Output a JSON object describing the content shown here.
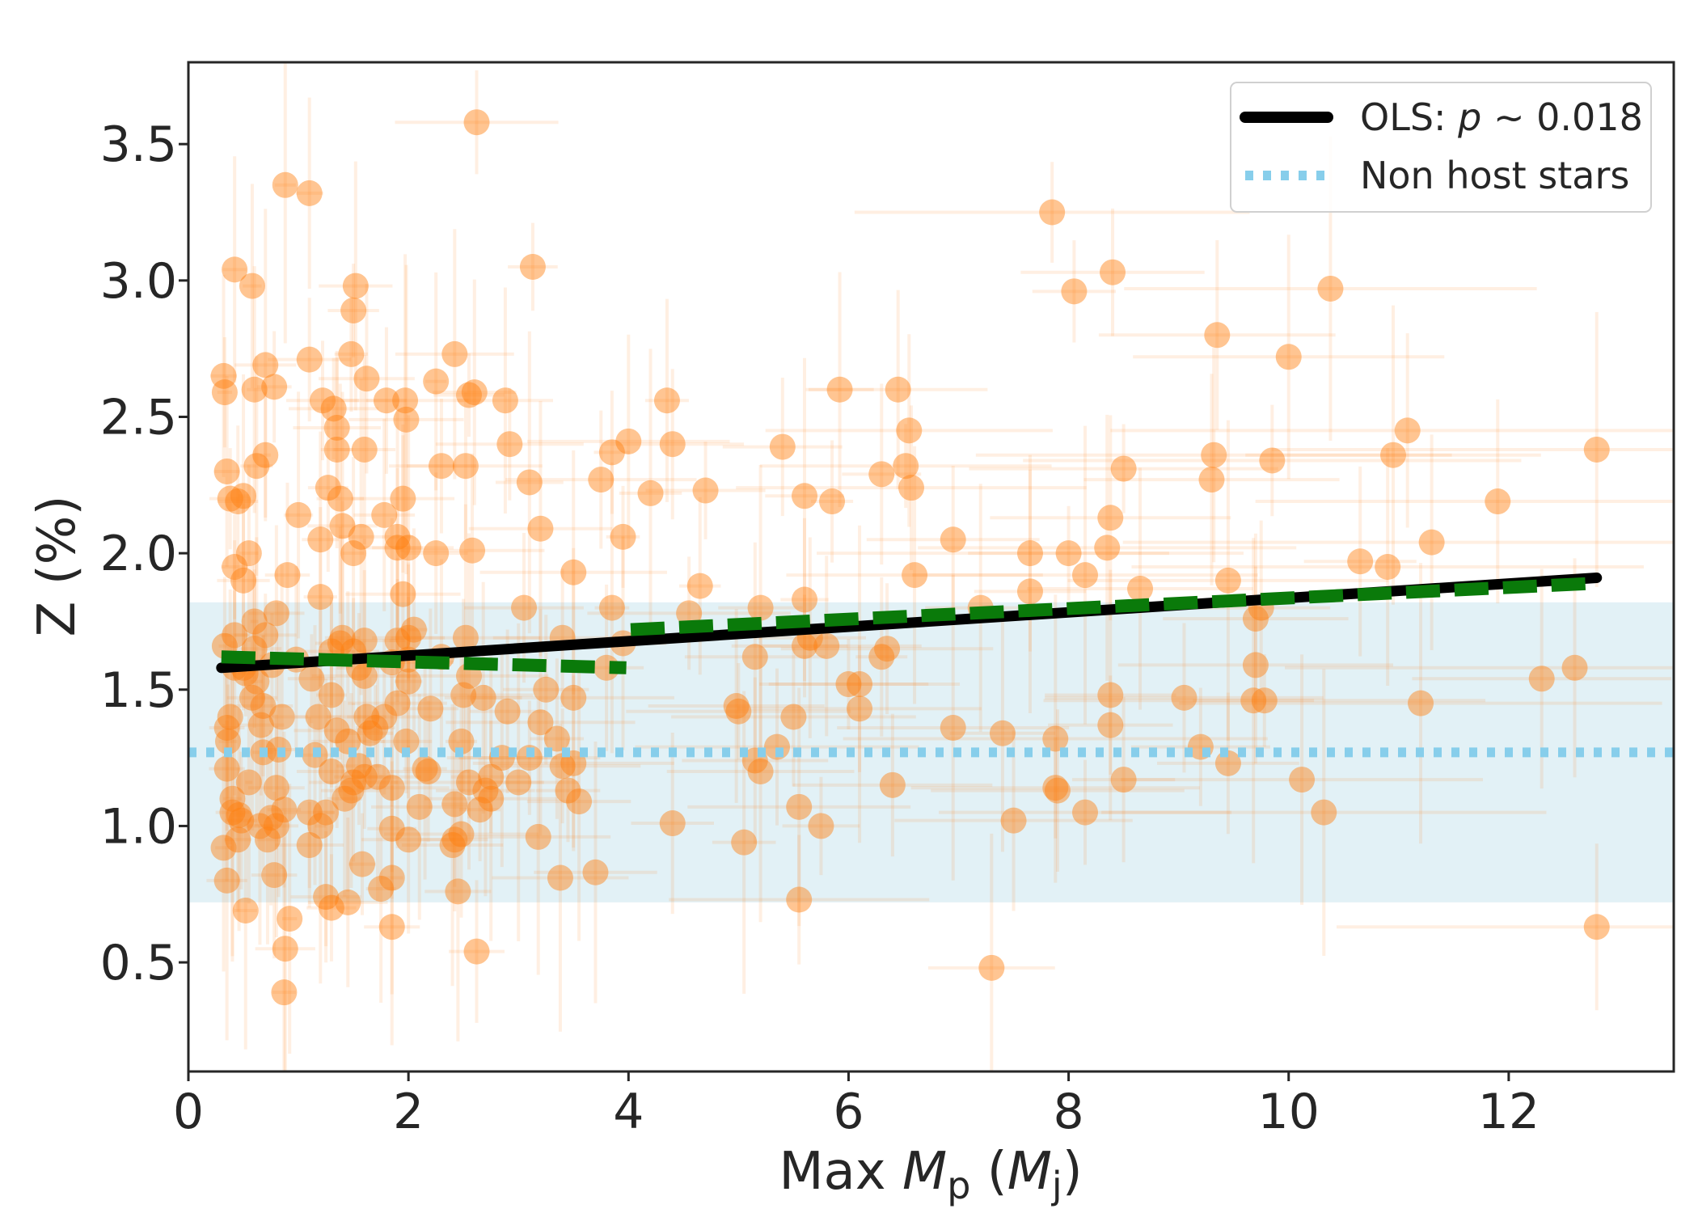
{
  "chart_data": {
    "type": "scatter",
    "title": "",
    "xlabel": {
      "prefix": "Max ",
      "var": "M",
      "var_sub": "p",
      "unit_open": " (",
      "unit_var": "M",
      "unit_sub": "j",
      "unit_close": ")"
    },
    "ylabel": "Z (%)",
    "xlim": [
      0,
      13.5
    ],
    "ylim": [
      0.1,
      3.8
    ],
    "xticks": [
      0,
      2,
      4,
      6,
      8,
      10,
      12
    ],
    "xtick_labels": [
      "0",
      "2",
      "4",
      "6",
      "8",
      "10",
      "12"
    ],
    "yticks": [
      0.5,
      1.0,
      1.5,
      2.0,
      2.5,
      3.0,
      3.5
    ],
    "ytick_labels": [
      "0.5",
      "1.0",
      "1.5",
      "2.0",
      "2.5",
      "3.0",
      "3.5"
    ],
    "grid": false,
    "legend_position": "top-right",
    "legend": {
      "ols_prefix": "OLS: ",
      "ols_var": "p",
      "ols_suffix": " ~ 0.018",
      "non_host": "Non host stars"
    },
    "colors": {
      "points": "#ff7f0e",
      "ols_line": "#000000",
      "piecewise": "#0a7a0a",
      "non_host_line": "#87ceeb",
      "non_host_band": "#add8e6"
    },
    "ols_fit": {
      "x": [
        0.3,
        12.8
      ],
      "y": [
        1.58,
        1.91
      ]
    },
    "piecewise_fit": [
      {
        "x": [
          0.3,
          3.98
        ],
        "y": [
          1.62,
          1.58
        ]
      },
      {
        "x": [
          4.02,
          12.8
        ],
        "y": [
          1.72,
          1.89
        ]
      }
    ],
    "non_host": {
      "mean": 1.27,
      "band": [
        0.72,
        1.82
      ],
      "x_extent": [
        0,
        13.5
      ]
    },
    "points": [
      [
        0.32,
        2.65
      ],
      [
        0.33,
        2.59
      ],
      [
        0.35,
        2.3
      ],
      [
        0.38,
        2.2
      ],
      [
        0.42,
        3.04
      ],
      [
        0.45,
        2.19
      ],
      [
        0.5,
        2.21
      ],
      [
        0.58,
        2.98
      ],
      [
        0.6,
        2.6
      ],
      [
        0.62,
        2.32
      ],
      [
        0.7,
        2.36
      ],
      [
        0.7,
        2.69
      ],
      [
        0.78,
        2.61
      ],
      [
        0.88,
        3.35
      ],
      [
        0.9,
        1.92
      ],
      [
        1.0,
        2.14
      ],
      [
        1.1,
        2.71
      ],
      [
        1.1,
        3.32
      ],
      [
        1.2,
        2.05
      ],
      [
        1.22,
        2.56
      ],
      [
        1.27,
        2.24
      ],
      [
        1.32,
        2.53
      ],
      [
        1.35,
        2.46
      ],
      [
        1.35,
        2.38
      ],
      [
        1.38,
        2.2
      ],
      [
        1.4,
        2.1
      ],
      [
        1.48,
        2.73
      ],
      [
        1.5,
        2.0
      ],
      [
        1.5,
        2.89
      ],
      [
        1.52,
        2.98
      ],
      [
        1.57,
        2.06
      ],
      [
        1.6,
        2.38
      ],
      [
        1.62,
        2.64
      ],
      [
        1.78,
        2.14
      ],
      [
        1.8,
        2.56
      ],
      [
        1.9,
        2.06
      ],
      [
        1.95,
        2.2
      ],
      [
        1.97,
        2.56
      ],
      [
        1.98,
        2.49
      ],
      [
        2.0,
        2.02
      ],
      [
        2.25,
        2.63
      ],
      [
        2.25,
        2.0
      ],
      [
        2.3,
        2.32
      ],
      [
        2.42,
        2.73
      ],
      [
        2.52,
        2.32
      ],
      [
        2.55,
        2.58
      ],
      [
        2.6,
        2.59
      ],
      [
        2.62,
        3.58
      ],
      [
        2.58,
        2.01
      ],
      [
        2.88,
        2.56
      ],
      [
        2.92,
        2.4
      ],
      [
        3.1,
        2.26
      ],
      [
        3.13,
        3.05
      ],
      [
        3.2,
        2.09
      ],
      [
        3.5,
        1.93
      ],
      [
        3.75,
        2.27
      ],
      [
        3.85,
        2.37
      ],
      [
        3.95,
        2.06
      ],
      [
        4.0,
        2.41
      ],
      [
        4.2,
        2.22
      ],
      [
        4.35,
        2.56
      ],
      [
        4.4,
        2.4
      ],
      [
        4.7,
        2.23
      ],
      [
        5.4,
        2.39
      ],
      [
        5.6,
        2.21
      ],
      [
        5.85,
        2.19
      ],
      [
        5.92,
        2.6
      ],
      [
        6.3,
        2.29
      ],
      [
        6.45,
        2.6
      ],
      [
        6.52,
        2.32
      ],
      [
        6.55,
        2.45
      ],
      [
        6.57,
        2.24
      ],
      [
        6.6,
        1.92
      ],
      [
        6.95,
        2.05
      ],
      [
        7.85,
        3.25
      ],
      [
        8.05,
        2.96
      ],
      [
        8.4,
        3.03
      ],
      [
        8.5,
        2.31
      ],
      [
        9.35,
        2.8
      ],
      [
        9.32,
        2.36
      ],
      [
        9.3,
        2.27
      ],
      [
        9.85,
        2.34
      ],
      [
        10.0,
        2.72
      ],
      [
        10.38,
        2.97
      ],
      [
        11.08,
        2.45
      ],
      [
        10.95,
        2.36
      ],
      [
        11.9,
        2.19
      ],
      [
        12.8,
        2.38
      ],
      [
        11.3,
        2.04
      ],
      [
        10.9,
        1.95
      ],
      [
        10.65,
        1.97
      ],
      [
        9.45,
        1.9
      ],
      [
        8.65,
        1.87
      ],
      [
        8.35,
        2.02
      ],
      [
        8.38,
        2.13
      ],
      [
        8.15,
        1.92
      ],
      [
        8.0,
        2.0
      ],
      [
        7.65,
        2.0
      ],
      [
        7.65,
        1.86
      ],
      [
        7.2,
        1.8
      ],
      [
        6.35,
        1.65
      ],
      [
        6.3,
        1.62
      ],
      [
        6.1,
        1.52
      ],
      [
        6.0,
        1.52
      ],
      [
        6.1,
        1.43
      ],
      [
        5.5,
        1.4
      ],
      [
        5.35,
        1.29
      ],
      [
        5.15,
        1.62
      ],
      [
        5.2,
        1.8
      ],
      [
        5.15,
        1.24
      ],
      [
        5.2,
        1.2
      ],
      [
        5.6,
        1.66
      ],
      [
        5.65,
        1.69
      ],
      [
        5.8,
        1.66
      ],
      [
        5.6,
        1.83
      ],
      [
        5.0,
        1.42
      ],
      [
        4.98,
        1.44
      ],
      [
        5.05,
        0.94
      ],
      [
        4.4,
        1.01
      ],
      [
        4.65,
        1.88
      ],
      [
        4.55,
        1.78
      ],
      [
        3.85,
        1.8
      ],
      [
        3.95,
        1.67
      ],
      [
        3.8,
        1.58
      ],
      [
        3.7,
        0.83
      ],
      [
        3.4,
        1.69
      ],
      [
        3.5,
        1.47
      ],
      [
        3.5,
        1.23
      ],
      [
        3.55,
        1.09
      ],
      [
        3.45,
        1.13
      ],
      [
        3.4,
        1.22
      ],
      [
        3.2,
        1.38
      ],
      [
        3.25,
        1.5
      ],
      [
        3.35,
        1.32
      ],
      [
        3.38,
        0.81
      ],
      [
        3.18,
        0.96
      ],
      [
        3.05,
        1.8
      ],
      [
        3.1,
        1.25
      ],
      [
        3.0,
        1.16
      ],
      [
        2.9,
        1.42
      ],
      [
        2.85,
        1.25
      ],
      [
        2.75,
        1.18
      ],
      [
        2.75,
        1.1
      ],
      [
        2.7,
        1.13
      ],
      [
        2.68,
        1.47
      ],
      [
        2.65,
        1.06
      ],
      [
        2.55,
        1.16
      ],
      [
        2.52,
        1.69
      ],
      [
        2.5,
        1.48
      ],
      [
        2.48,
        1.31
      ],
      [
        2.45,
        0.76
      ],
      [
        2.62,
        0.54
      ],
      [
        2.42,
        0.95
      ],
      [
        2.48,
        0.97
      ],
      [
        2.4,
        0.93
      ],
      [
        2.42,
        1.08
      ],
      [
        2.3,
        1.62
      ],
      [
        2.2,
        1.43
      ],
      [
        2.18,
        1.2
      ],
      [
        2.15,
        1.21
      ],
      [
        2.1,
        1.07
      ],
      [
        2.05,
        1.72
      ],
      [
        2.0,
        1.69
      ],
      [
        2.0,
        1.61
      ],
      [
        2.0,
        1.53
      ],
      [
        1.98,
        1.31
      ],
      [
        2.0,
        0.95
      ],
      [
        1.95,
        1.85
      ],
      [
        1.9,
        1.68
      ],
      [
        1.85,
        1.6
      ],
      [
        1.9,
        1.45
      ],
      [
        1.85,
        1.14
      ],
      [
        1.85,
        0.99
      ],
      [
        1.85,
        0.81
      ],
      [
        1.85,
        0.63
      ],
      [
        1.78,
        1.4
      ],
      [
        1.75,
        0.77
      ],
      [
        1.72,
        1.18
      ],
      [
        1.7,
        1.36
      ],
      [
        1.65,
        1.34
      ],
      [
        1.62,
        1.4
      ],
      [
        1.6,
        1.68
      ],
      [
        1.6,
        1.55
      ],
      [
        1.6,
        1.18
      ],
      [
        1.58,
        0.86
      ],
      [
        1.55,
        1.22
      ],
      [
        1.55,
        1.58
      ],
      [
        1.5,
        1.64
      ],
      [
        1.5,
        1.16
      ],
      [
        1.48,
        1.13
      ],
      [
        1.45,
        1.31
      ],
      [
        1.45,
        0.72
      ],
      [
        1.42,
        1.1
      ],
      [
        1.4,
        1.69
      ],
      [
        1.38,
        1.67
      ],
      [
        1.35,
        1.35
      ],
      [
        1.3,
        1.64
      ],
      [
        1.3,
        1.48
      ],
      [
        1.3,
        1.2
      ],
      [
        1.25,
        0.74
      ],
      [
        1.3,
        0.7
      ],
      [
        1.25,
        1.05
      ],
      [
        1.2,
        1.84
      ],
      [
        1.18,
        1.4
      ],
      [
        1.15,
        1.26
      ],
      [
        1.12,
        1.54
      ],
      [
        1.1,
        1.05
      ],
      [
        1.1,
        0.93
      ],
      [
        0.98,
        1.61
      ],
      [
        0.92,
        0.66
      ],
      [
        0.88,
        0.55
      ],
      [
        0.87,
        0.39
      ],
      [
        0.87,
        1.06
      ],
      [
        0.85,
        1.4
      ],
      [
        0.82,
        1.28
      ],
      [
        0.8,
        1.78
      ],
      [
        0.8,
        1.14
      ],
      [
        0.8,
        1.0
      ],
      [
        0.78,
        0.82
      ],
      [
        0.76,
        1.59
      ],
      [
        0.75,
        1.03
      ],
      [
        0.72,
        0.95
      ],
      [
        0.7,
        1.7
      ],
      [
        0.68,
        1.27
      ],
      [
        0.68,
        1.44
      ],
      [
        0.66,
        1.37
      ],
      [
        0.65,
        1.0
      ],
      [
        0.62,
        1.53
      ],
      [
        0.6,
        1.75
      ],
      [
        0.58,
        1.47
      ],
      [
        0.55,
        1.16
      ],
      [
        0.52,
        1.56
      ],
      [
        0.5,
        1.9
      ],
      [
        0.5,
        1.58
      ],
      [
        0.48,
        1.02
      ],
      [
        0.46,
        1.04
      ],
      [
        0.45,
        0.95
      ],
      [
        0.42,
        1.95
      ],
      [
        0.42,
        1.7
      ],
      [
        0.42,
        1.58
      ],
      [
        0.4,
        1.1
      ],
      [
        0.4,
        1.05
      ],
      [
        0.38,
        1.4
      ],
      [
        0.36,
        1.31
      ],
      [
        0.35,
        1.36
      ],
      [
        0.35,
        1.21
      ],
      [
        0.35,
        0.8
      ],
      [
        0.33,
        1.66
      ],
      [
        0.32,
        0.92
      ],
      [
        0.52,
        0.69
      ],
      [
        0.55,
        2.0
      ],
      [
        0.6,
        1.65
      ],
      [
        1.2,
        1.0
      ],
      [
        1.9,
        2.02
      ],
      [
        2.55,
        1.55
      ],
      [
        7.3,
        0.48
      ],
      [
        12.8,
        0.63
      ],
      [
        12.6,
        1.58
      ],
      [
        12.3,
        1.54
      ],
      [
        11.2,
        1.45
      ],
      [
        10.32,
        1.05
      ],
      [
        10.12,
        1.17
      ],
      [
        9.78,
        1.46
      ],
      [
        9.68,
        1.46
      ],
      [
        9.7,
        1.59
      ],
      [
        9.75,
        1.8
      ],
      [
        9.7,
        1.76
      ],
      [
        9.45,
        1.23
      ],
      [
        9.2,
        1.29
      ],
      [
        9.05,
        1.47
      ],
      [
        8.5,
        1.17
      ],
      [
        8.38,
        1.48
      ],
      [
        8.38,
        1.37
      ],
      [
        8.15,
        1.05
      ],
      [
        7.9,
        1.13
      ],
      [
        7.88,
        1.14
      ],
      [
        7.88,
        1.32
      ],
      [
        7.5,
        1.02
      ],
      [
        7.4,
        1.34
      ],
      [
        6.95,
        1.36
      ],
      [
        6.4,
        1.15
      ],
      [
        5.75,
        1.0
      ],
      [
        5.55,
        1.07
      ],
      [
        5.55,
        0.73
      ]
    ]
  }
}
